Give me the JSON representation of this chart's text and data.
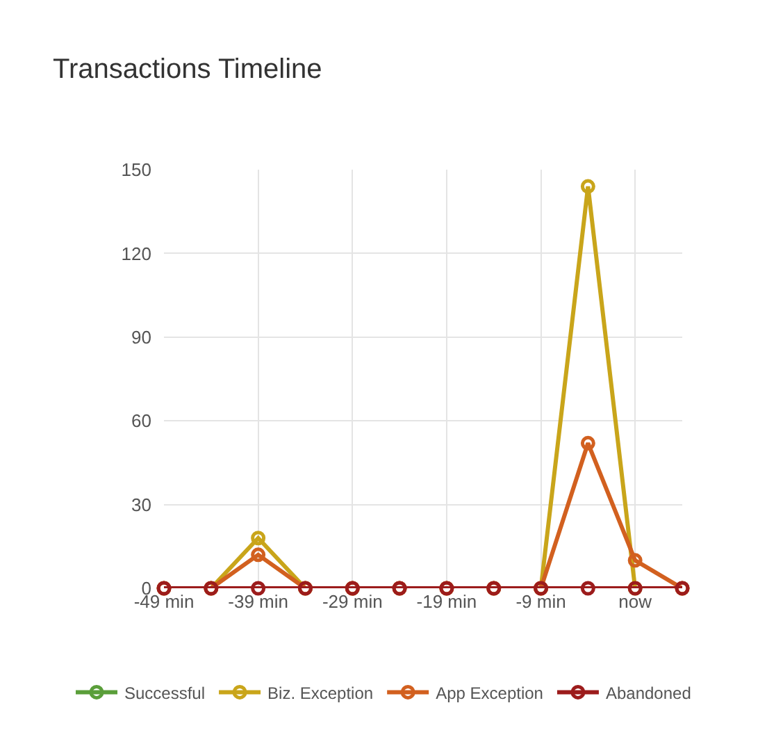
{
  "chart_data": {
    "type": "line",
    "title": "Transactions Timeline",
    "categories": [
      "-49 min",
      null,
      "-39 min",
      null,
      "-29 min",
      null,
      "-19 min",
      null,
      "-9 min",
      null,
      "now",
      null
    ],
    "series": [
      {
        "name": "Successful",
        "color": "#5a9e3a",
        "values": [
          null,
          null,
          null,
          null,
          null,
          null,
          null,
          null,
          null,
          null,
          null,
          null
        ]
      },
      {
        "name": "Biz. Exception",
        "color": "#c9a51a",
        "values": [
          0,
          0,
          18,
          0,
          0,
          0,
          0,
          0,
          0,
          144,
          0,
          0
        ]
      },
      {
        "name": "App Exception",
        "color": "#d2601f",
        "values": [
          0,
          0,
          12,
          0,
          0,
          0,
          0,
          0,
          0,
          52,
          10,
          0
        ]
      },
      {
        "name": "Abandoned",
        "color": "#9c1c1c",
        "values": [
          0,
          0,
          0,
          0,
          0,
          0,
          0,
          0,
          0,
          0,
          0,
          0
        ]
      }
    ],
    "ylim": [
      0,
      150
    ],
    "yticks": [
      0,
      30,
      60,
      90,
      120,
      150
    ],
    "grid": true,
    "legend": "bottom",
    "marker": "circle",
    "line_style": "solid"
  }
}
